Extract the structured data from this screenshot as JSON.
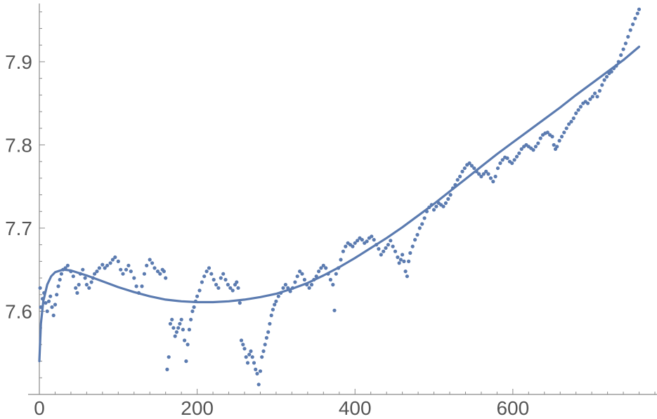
{
  "chart_data": {
    "type": "scatter",
    "title": "",
    "xlabel": "",
    "ylabel": "",
    "xlim": [
      0,
      780
    ],
    "ylim": [
      7.5,
      7.97
    ],
    "x_ticks": [
      0,
      200,
      400,
      600
    ],
    "x_tick_labels": [
      "0",
      "200",
      "400",
      "600"
    ],
    "y_ticks": [
      7.6,
      7.7,
      7.8,
      7.9
    ],
    "y_tick_labels": [
      "7.6",
      "7.7",
      "7.8",
      "7.9"
    ],
    "grid": false,
    "legend": "none",
    "color": "#5b7bb0",
    "series": [
      {
        "kind": "points",
        "points": [
          [
            1,
            7.628
          ],
          [
            2,
            7.605
          ],
          [
            4,
            7.615
          ],
          [
            6,
            7.622
          ],
          [
            8,
            7.61
          ],
          [
            10,
            7.6
          ],
          [
            12,
            7.612
          ],
          [
            14,
            7.618
          ],
          [
            16,
            7.605
          ],
          [
            18,
            7.595
          ],
          [
            20,
            7.608
          ],
          [
            22,
            7.62
          ],
          [
            24,
            7.63
          ],
          [
            26,
            7.638
          ],
          [
            28,
            7.645
          ],
          [
            30,
            7.65
          ],
          [
            33,
            7.652
          ],
          [
            36,
            7.655
          ],
          [
            40,
            7.648
          ],
          [
            43,
            7.642
          ],
          [
            46,
            7.628
          ],
          [
            48,
            7.622
          ],
          [
            50,
            7.632
          ],
          [
            52,
            7.645
          ],
          [
            55,
            7.65
          ],
          [
            58,
            7.64
          ],
          [
            60,
            7.632
          ],
          [
            63,
            7.628
          ],
          [
            66,
            7.635
          ],
          [
            68,
            7.64
          ],
          [
            70,
            7.645
          ],
          [
            73,
            7.648
          ],
          [
            76,
            7.652
          ],
          [
            80,
            7.656
          ],
          [
            83,
            7.652
          ],
          [
            86,
            7.655
          ],
          [
            90,
            7.658
          ],
          [
            93,
            7.662
          ],
          [
            96,
            7.665
          ],
          [
            100,
            7.66
          ],
          [
            103,
            7.65
          ],
          [
            106,
            7.645
          ],
          [
            110,
            7.65
          ],
          [
            113,
            7.655
          ],
          [
            116,
            7.648
          ],
          [
            120,
            7.64
          ],
          [
            123,
            7.63
          ],
          [
            126,
            7.622
          ],
          [
            130,
            7.63
          ],
          [
            133,
            7.645
          ],
          [
            136,
            7.655
          ],
          [
            140,
            7.662
          ],
          [
            143,
            7.658
          ],
          [
            146,
            7.652
          ],
          [
            150,
            7.648
          ],
          [
            153,
            7.645
          ],
          [
            156,
            7.65
          ],
          [
            158,
            7.648
          ],
          [
            160,
            7.64
          ],
          [
            162,
            7.53
          ],
          [
            164,
            7.545
          ],
          [
            166,
            7.585
          ],
          [
            168,
            7.59
          ],
          [
            170,
            7.58
          ],
          [
            172,
            7.57
          ],
          [
            174,
            7.575
          ],
          [
            176,
            7.58
          ],
          [
            178,
            7.585
          ],
          [
            180,
            7.59
          ],
          [
            182,
            7.578
          ],
          [
            184,
            7.565
          ],
          [
            186,
            7.54
          ],
          [
            188,
            7.56
          ],
          [
            190,
            7.578
          ],
          [
            192,
            7.59
          ],
          [
            194,
            7.6
          ],
          [
            196,
            7.605
          ],
          [
            198,
            7.612
          ],
          [
            200,
            7.618
          ],
          [
            203,
            7.625
          ],
          [
            206,
            7.635
          ],
          [
            209,
            7.642
          ],
          [
            212,
            7.648
          ],
          [
            215,
            7.652
          ],
          [
            218,
            7.645
          ],
          [
            221,
            7.638
          ],
          [
            224,
            7.632
          ],
          [
            227,
            7.628
          ],
          [
            230,
            7.64
          ],
          [
            233,
            7.645
          ],
          [
            236,
            7.638
          ],
          [
            239,
            7.632
          ],
          [
            242,
            7.628
          ],
          [
            245,
            7.625
          ],
          [
            248,
            7.632
          ],
          [
            250,
            7.635
          ],
          [
            252,
            7.628
          ],
          [
            254,
            7.61
          ],
          [
            256,
            7.565
          ],
          [
            258,
            7.56
          ],
          [
            260,
            7.555
          ],
          [
            262,
            7.545
          ],
          [
            264,
            7.538
          ],
          [
            266,
            7.548
          ],
          [
            268,
            7.552
          ],
          [
            270,
            7.545
          ],
          [
            272,
            7.538
          ],
          [
            274,
            7.53
          ],
          [
            276,
            7.525
          ],
          [
            278,
            7.512
          ],
          [
            280,
            7.528
          ],
          [
            282,
            7.545
          ],
          [
            284,
            7.552
          ],
          [
            286,
            7.56
          ],
          [
            288,
            7.568
          ],
          [
            290,
            7.575
          ],
          [
            292,
            7.585
          ],
          [
            294,
            7.595
          ],
          [
            296,
            7.602
          ],
          [
            298,
            7.608
          ],
          [
            300,
            7.612
          ],
          [
            303,
            7.618
          ],
          [
            306,
            7.622
          ],
          [
            309,
            7.628
          ],
          [
            312,
            7.632
          ],
          [
            315,
            7.628
          ],
          [
            318,
            7.624
          ],
          [
            321,
            7.628
          ],
          [
            324,
            7.635
          ],
          [
            327,
            7.642
          ],
          [
            330,
            7.648
          ],
          [
            333,
            7.645
          ],
          [
            336,
            7.638
          ],
          [
            339,
            7.632
          ],
          [
            342,
            7.628
          ],
          [
            345,
            7.632
          ],
          [
            348,
            7.638
          ],
          [
            351,
            7.642
          ],
          [
            354,
            7.648
          ],
          [
            357,
            7.652
          ],
          [
            360,
            7.655
          ],
          [
            363,
            7.652
          ],
          [
            366,
            7.645
          ],
          [
            369,
            7.638
          ],
          [
            372,
            7.632
          ],
          [
            374,
            7.601
          ],
          [
            376,
            7.645
          ],
          [
            379,
            7.652
          ],
          [
            382,
            7.662
          ],
          [
            385,
            7.672
          ],
          [
            388,
            7.678
          ],
          [
            391,
            7.682
          ],
          [
            394,
            7.68
          ],
          [
            397,
            7.678
          ],
          [
            400,
            7.682
          ],
          [
            403,
            7.685
          ],
          [
            406,
            7.688
          ],
          [
            409,
            7.686
          ],
          [
            412,
            7.682
          ],
          [
            415,
            7.684
          ],
          [
            418,
            7.688
          ],
          [
            421,
            7.69
          ],
          [
            424,
            7.686
          ],
          [
            427,
            7.68
          ],
          [
            430,
            7.675
          ],
          [
            433,
            7.668
          ],
          [
            436,
            7.672
          ],
          [
            439,
            7.676
          ],
          [
            442,
            7.68
          ],
          [
            445,
            7.685
          ],
          [
            448,
            7.678
          ],
          [
            451,
            7.672
          ],
          [
            454,
            7.665
          ],
          [
            456,
            7.658
          ],
          [
            458,
            7.662
          ],
          [
            460,
            7.668
          ],
          [
            462,
            7.66
          ],
          [
            464,
            7.648
          ],
          [
            466,
            7.642
          ],
          [
            468,
            7.66
          ],
          [
            470,
            7.67
          ],
          [
            473,
            7.678
          ],
          [
            476,
            7.686
          ],
          [
            479,
            7.692
          ],
          [
            482,
            7.7
          ],
          [
            485,
            7.705
          ],
          [
            488,
            7.712
          ],
          [
            491,
            7.72
          ],
          [
            494,
            7.725
          ],
          [
            497,
            7.728
          ],
          [
            500,
            7.722
          ],
          [
            503,
            7.726
          ],
          [
            506,
            7.73
          ],
          [
            509,
            7.728
          ],
          [
            512,
            7.726
          ],
          [
            515,
            7.73
          ],
          [
            518,
            7.735
          ],
          [
            521,
            7.74
          ],
          [
            524,
            7.748
          ],
          [
            527,
            7.752
          ],
          [
            530,
            7.758
          ],
          [
            533,
            7.762
          ],
          [
            536,
            7.768
          ],
          [
            539,
            7.772
          ],
          [
            542,
            7.776
          ],
          [
            545,
            7.778
          ],
          [
            548,
            7.775
          ],
          [
            551,
            7.772
          ],
          [
            554,
            7.768
          ],
          [
            557,
            7.765
          ],
          [
            560,
            7.762
          ],
          [
            563,
            7.765
          ],
          [
            566,
            7.768
          ],
          [
            569,
            7.765
          ],
          [
            572,
            7.76
          ],
          [
            575,
            7.756
          ],
          [
            578,
            7.762
          ],
          [
            581,
            7.772
          ],
          [
            584,
            7.778
          ],
          [
            587,
            7.782
          ],
          [
            590,
            7.785
          ],
          [
            593,
            7.784
          ],
          [
            596,
            7.78
          ],
          [
            599,
            7.778
          ],
          [
            602,
            7.782
          ],
          [
            605,
            7.786
          ],
          [
            608,
            7.79
          ],
          [
            611,
            7.795
          ],
          [
            614,
            7.798
          ],
          [
            617,
            7.8
          ],
          [
            620,
            7.798
          ],
          [
            623,
            7.796
          ],
          [
            626,
            7.794
          ],
          [
            629,
            7.798
          ],
          [
            632,
            7.802
          ],
          [
            635,
            7.808
          ],
          [
            638,
            7.812
          ],
          [
            641,
            7.814
          ],
          [
            644,
            7.815
          ],
          [
            647,
            7.812
          ],
          [
            650,
            7.81
          ],
          [
            652,
            7.8
          ],
          [
            654,
            7.795
          ],
          [
            656,
            7.798
          ],
          [
            659,
            7.805
          ],
          [
            662,
            7.81
          ],
          [
            665,
            7.815
          ],
          [
            668,
            7.82
          ],
          [
            671,
            7.825
          ],
          [
            674,
            7.828
          ],
          [
            677,
            7.832
          ],
          [
            680,
            7.838
          ],
          [
            683,
            7.842
          ],
          [
            686,
            7.846
          ],
          [
            689,
            7.85
          ],
          [
            692,
            7.852
          ],
          [
            695,
            7.85
          ],
          [
            698,
            7.855
          ],
          [
            701,
            7.858
          ],
          [
            704,
            7.862
          ],
          [
            707,
            7.858
          ],
          [
            710,
            7.865
          ],
          [
            713,
            7.872
          ],
          [
            716,
            7.878
          ],
          [
            719,
            7.882
          ],
          [
            722,
            7.886
          ],
          [
            725,
            7.888
          ],
          [
            728,
            7.892
          ],
          [
            731,
            7.895
          ],
          [
            734,
            7.9
          ],
          [
            737,
            7.908
          ],
          [
            740,
            7.915
          ],
          [
            743,
            7.922
          ],
          [
            746,
            7.93
          ],
          [
            749,
            7.938
          ],
          [
            752,
            7.945
          ],
          [
            755,
            7.952
          ],
          [
            758,
            7.958
          ],
          [
            760,
            7.963
          ]
        ]
      },
      {
        "kind": "fit-line",
        "points": [
          [
            0,
            7.54
          ],
          [
            2,
            7.585
          ],
          [
            5,
            7.612
          ],
          [
            10,
            7.632
          ],
          [
            15,
            7.642
          ],
          [
            20,
            7.647
          ],
          [
            30,
            7.65
          ],
          [
            40,
            7.649
          ],
          [
            60,
            7.643
          ],
          [
            80,
            7.636
          ],
          [
            100,
            7.629
          ],
          [
            120,
            7.623
          ],
          [
            140,
            7.618
          ],
          [
            160,
            7.614
          ],
          [
            180,
            7.612
          ],
          [
            200,
            7.611
          ],
          [
            220,
            7.611
          ],
          [
            240,
            7.612
          ],
          [
            260,
            7.614
          ],
          [
            280,
            7.617
          ],
          [
            300,
            7.621
          ],
          [
            320,
            7.627
          ],
          [
            340,
            7.634
          ],
          [
            360,
            7.643
          ],
          [
            380,
            7.653
          ],
          [
            400,
            7.664
          ],
          [
            420,
            7.676
          ],
          [
            440,
            7.688
          ],
          [
            460,
            7.701
          ],
          [
            480,
            7.715
          ],
          [
            500,
            7.729
          ],
          [
            520,
            7.744
          ],
          [
            540,
            7.759
          ],
          [
            560,
            7.774
          ],
          [
            580,
            7.789
          ],
          [
            600,
            7.803
          ],
          [
            620,
            7.817
          ],
          [
            640,
            7.831
          ],
          [
            660,
            7.845
          ],
          [
            680,
            7.86
          ],
          [
            700,
            7.874
          ],
          [
            720,
            7.888
          ],
          [
            740,
            7.902
          ],
          [
            760,
            7.918
          ]
        ]
      }
    ]
  }
}
